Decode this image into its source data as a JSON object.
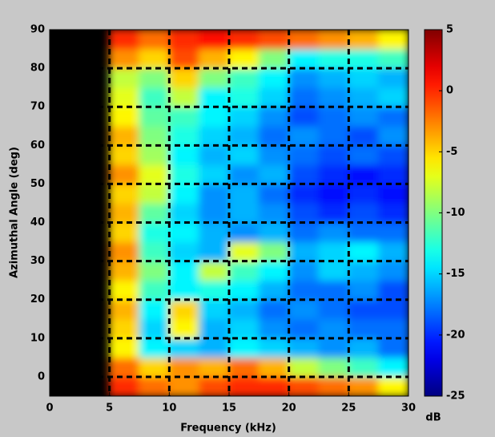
{
  "chart_data": {
    "type": "heatmap",
    "x_label": "Frequency (kHz)",
    "y_label": "Azimuthal Angle (deg)",
    "colorbar_label": "dB",
    "xlim": [
      0,
      30
    ],
    "ylim": [
      -5,
      90
    ],
    "xticks": [
      0,
      5,
      10,
      15,
      20,
      25,
      30
    ],
    "yticks": [
      0,
      10,
      20,
      30,
      40,
      50,
      60,
      70,
      80,
      90
    ],
    "grid_x": [
      5,
      10,
      15,
      20,
      25
    ],
    "grid_y": [
      0,
      10,
      20,
      30,
      40,
      50,
      60,
      70,
      80
    ],
    "colormap": "jet",
    "zlim": [
      -25,
      5
    ],
    "cticks": [
      5,
      0,
      -5,
      -10,
      -15,
      -20,
      -25
    ],
    "xbins": [
      5,
      7.5,
      10,
      12.5,
      15,
      17.5,
      20,
      22.5,
      25,
      27.5,
      30
    ],
    "ybins": [
      -5,
      0,
      5,
      10,
      15,
      20,
      25,
      30,
      35,
      40,
      45,
      50,
      55,
      60,
      65,
      70,
      75,
      80,
      85,
      90
    ],
    "values": [
      [
        0,
        -2,
        -3,
        -1,
        0,
        0,
        -1,
        -2,
        -3,
        -6
      ],
      [
        -2,
        -5,
        -3,
        -4,
        -2,
        -4,
        -8,
        -10,
        -12,
        -14
      ],
      [
        -6,
        -14,
        -15,
        -16,
        -14,
        -15,
        -16,
        -17,
        -16,
        -18
      ],
      [
        -5,
        -15,
        -6,
        -16,
        -15,
        -17,
        -18,
        -17,
        -18,
        -18
      ],
      [
        -4,
        -14,
        -5,
        -15,
        -16,
        -18,
        -17,
        -18,
        -19,
        -19
      ],
      [
        -6,
        -12,
        -14,
        -13,
        -14,
        -16,
        -18,
        -18,
        -17,
        -19
      ],
      [
        -4,
        -10,
        -14,
        -8,
        -12,
        -14,
        -17,
        -15,
        -16,
        -17
      ],
      [
        -3,
        -12,
        -15,
        -16,
        -7,
        -10,
        -16,
        -15,
        -14,
        -16
      ],
      [
        -5,
        -13,
        -14,
        -16,
        -17,
        -16,
        -18,
        -17,
        -18,
        -18
      ],
      [
        -4,
        -11,
        -15,
        -17,
        -16,
        -17,
        -19,
        -20,
        -19,
        -20
      ],
      [
        -5,
        -8,
        -14,
        -17,
        -16,
        -18,
        -20,
        -21,
        -20,
        -21
      ],
      [
        -3,
        -7,
        -13,
        -15,
        -17,
        -16,
        -19,
        -20,
        -21,
        -20
      ],
      [
        -5,
        -9,
        -14,
        -16,
        -15,
        -17,
        -18,
        -19,
        -18,
        -19
      ],
      [
        -4,
        -10,
        -13,
        -15,
        -16,
        -18,
        -17,
        -18,
        -19,
        -17
      ],
      [
        -6,
        -11,
        -12,
        -14,
        -15,
        -17,
        -19,
        -18,
        -17,
        -18
      ],
      [
        -7,
        -12,
        -8,
        -14,
        -13,
        -15,
        -18,
        -17,
        -16,
        -15
      ],
      [
        -8,
        -10,
        -5,
        -10,
        -12,
        -14,
        -17,
        -16,
        -15,
        -16
      ],
      [
        -3,
        -5,
        -1,
        -4,
        -6,
        -10,
        -14,
        -13,
        -13,
        -12
      ],
      [
        0,
        -2,
        0,
        1,
        0,
        -1,
        -2,
        -3,
        -4,
        -6
      ]
    ]
  }
}
